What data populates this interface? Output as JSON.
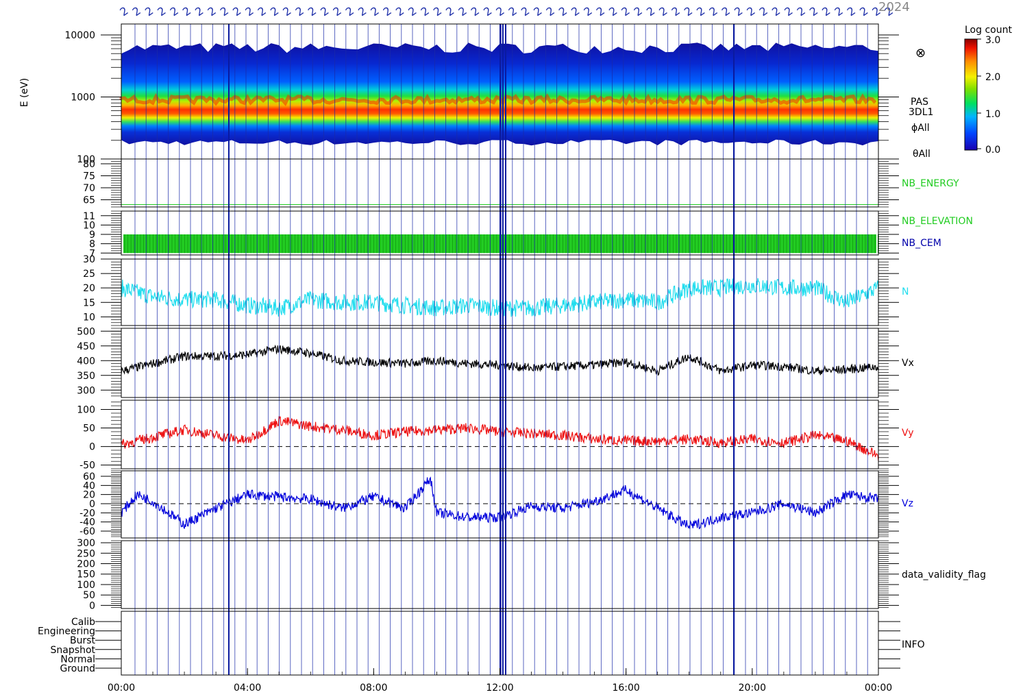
{
  "header": {
    "title_fragment": "2024"
  },
  "colorbar": {
    "label": "Log count",
    "ticks": [
      "3.0",
      "2.0",
      "1.0",
      "0.0"
    ]
  },
  "spectrogram_labels": [
    "PAS",
    "3DL1",
    "ϕAll",
    "θAll"
  ],
  "chart_data": {
    "type": "line",
    "x_axis": {
      "range_hours": [
        0,
        24
      ],
      "tick_labels": [
        "00:00",
        "04:00",
        "08:00",
        "12:00",
        "16:00",
        "20:00",
        "00:00"
      ]
    },
    "panels": [
      {
        "id": "energy",
        "type": "heatmap",
        "ylabel": "E (eV)",
        "yscale": "log",
        "yrange": [
          100,
          15000
        ],
        "y_tick_labels": [
          "10000",
          "1000",
          "100"
        ],
        "peak_energy_ev": 900,
        "color": "#ff2a00"
      },
      {
        "id": "nb-energy",
        "name": "NB_ENERGY",
        "color": "#22cc22",
        "yrange": [
          62,
          82
        ],
        "y_tick_labels": [
          "80",
          "75",
          "70",
          "65"
        ],
        "constant_value": 63
      },
      {
        "id": "nb-elev",
        "names": [
          "NB_ELEVATION",
          "NB_CEM"
        ],
        "colors": [
          "#22cc22",
          "#0000aa"
        ],
        "yrange": [
          6.8,
          11.5
        ],
        "y_tick_labels": [
          "11",
          "10",
          "9",
          "8",
          "7"
        ],
        "band": [
          7,
          9
        ]
      },
      {
        "id": "n",
        "name": "N",
        "color": "#22ddee",
        "yrange": [
          7,
          30
        ],
        "y_tick_labels": [
          "30",
          "25",
          "20",
          "15",
          "10"
        ],
        "x": [
          0,
          1,
          2,
          3,
          4,
          5,
          6,
          7,
          8,
          9,
          10,
          11,
          12,
          13,
          14,
          15,
          16,
          17,
          18,
          19,
          20,
          21,
          22,
          23,
          24
        ],
        "values": [
          20,
          17,
          16,
          16,
          14,
          13,
          16,
          15,
          15,
          14,
          13,
          14,
          13,
          13,
          14,
          15,
          16,
          15,
          20,
          20,
          21,
          20,
          20,
          15,
          20
        ]
      },
      {
        "id": "vx",
        "name": "Vx",
        "color": "#000000",
        "yrange": [
          275,
          510
        ],
        "y_tick_labels": [
          "500",
          "450",
          "400",
          "350",
          "300"
        ],
        "x": [
          0,
          1,
          2,
          3,
          4,
          5,
          6,
          7,
          8,
          9,
          10,
          11,
          12,
          13,
          14,
          15,
          16,
          17,
          18,
          19,
          20,
          21,
          22,
          23,
          24
        ],
        "values": [
          365,
          390,
          415,
          415,
          420,
          440,
          425,
          400,
          395,
          390,
          400,
          390,
          385,
          375,
          380,
          385,
          395,
          365,
          415,
          365,
          385,
          380,
          365,
          370,
          380
        ]
      },
      {
        "id": "vy",
        "name": "Vy",
        "color": "#ee1111",
        "yrange": [
          -60,
          125
        ],
        "y_tick_labels": [
          "100",
          "50",
          "0",
          "-50"
        ],
        "dashed_zero": true,
        "x": [
          0,
          1,
          2,
          3,
          4,
          5,
          6,
          7,
          8,
          9,
          10,
          11,
          12,
          13,
          14,
          15,
          16,
          17,
          18,
          19,
          20,
          21,
          22,
          23,
          24
        ],
        "values": [
          5,
          25,
          45,
          30,
          15,
          70,
          55,
          45,
          30,
          40,
          45,
          50,
          40,
          35,
          30,
          20,
          15,
          15,
          20,
          10,
          20,
          10,
          30,
          15,
          -25
        ]
      },
      {
        "id": "vz",
        "name": "Vz",
        "color": "#0000dd",
        "yrange": [
          -75,
          72
        ],
        "y_tick_labels": [
          "60",
          "40",
          "20",
          "0",
          "-20",
          "-40",
          "-60"
        ],
        "dashed_zero": true,
        "x": [
          0,
          0.5,
          1,
          2,
          3,
          4,
          5,
          6,
          7,
          8,
          9,
          9.8,
          10,
          11,
          12,
          13,
          14,
          15,
          16,
          17,
          18,
          19,
          20,
          21,
          22,
          23,
          24
        ],
        "values": [
          -20,
          20,
          5,
          -45,
          -10,
          20,
          15,
          10,
          -10,
          15,
          -10,
          55,
          -20,
          -30,
          -30,
          -5,
          -10,
          5,
          30,
          -10,
          -50,
          -30,
          -20,
          0,
          -20,
          20,
          10
        ]
      },
      {
        "id": "validity",
        "name": "data_validity_flag",
        "color": "#000000",
        "yrange": [
          -15,
          310
        ],
        "y_tick_labels": [
          "300",
          "250",
          "200",
          "150",
          "100",
          "50",
          "0"
        ]
      },
      {
        "id": "info",
        "name": "INFO",
        "color": "#000000",
        "y_tick_labels": [
          "Calib",
          "Engineering",
          "Burst",
          "Snapshot",
          "Normal",
          "Ground"
        ]
      }
    ]
  }
}
